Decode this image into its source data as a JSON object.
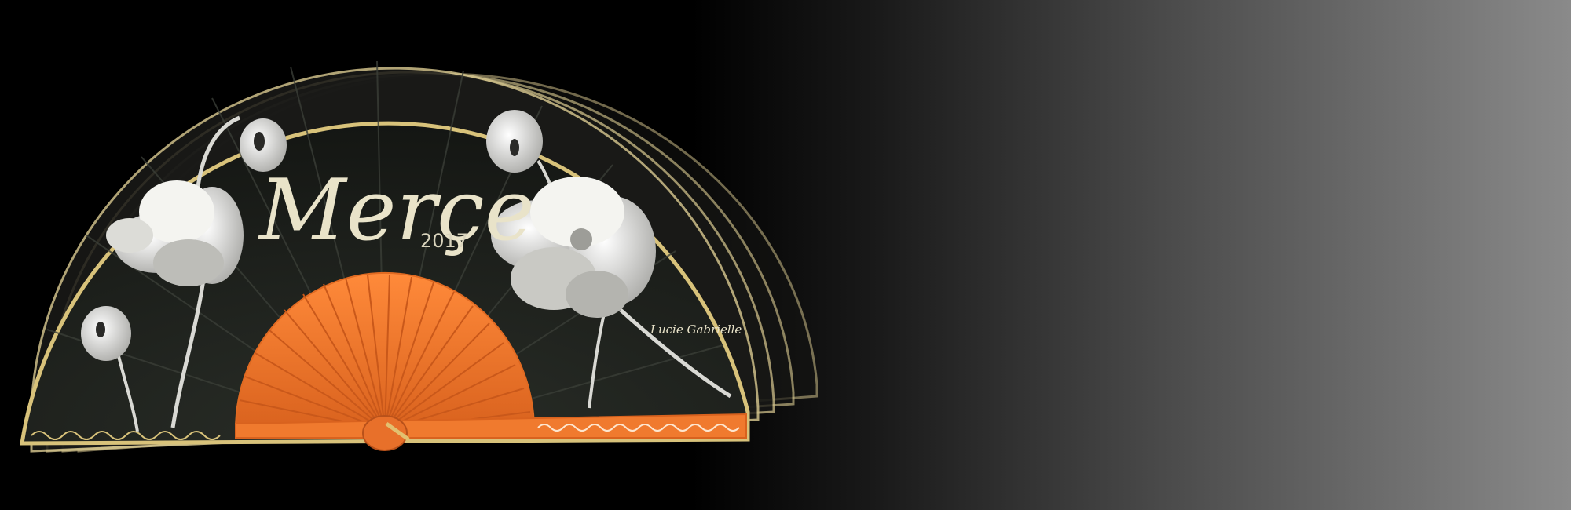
{
  "image": {
    "subject": "hand-painted-folding-fan",
    "colors": {
      "background_left": "#000000",
      "background_right": "#8a8a8a",
      "fan_leaf": "#1b1e1a",
      "ribs": "#f07a2e",
      "flowers": "#e8e8e4",
      "gold_trim": "#d8c27a"
    }
  },
  "fan": {
    "title": "Merçe",
    "year": "2017",
    "signature": "Lucie Gabrielle"
  }
}
